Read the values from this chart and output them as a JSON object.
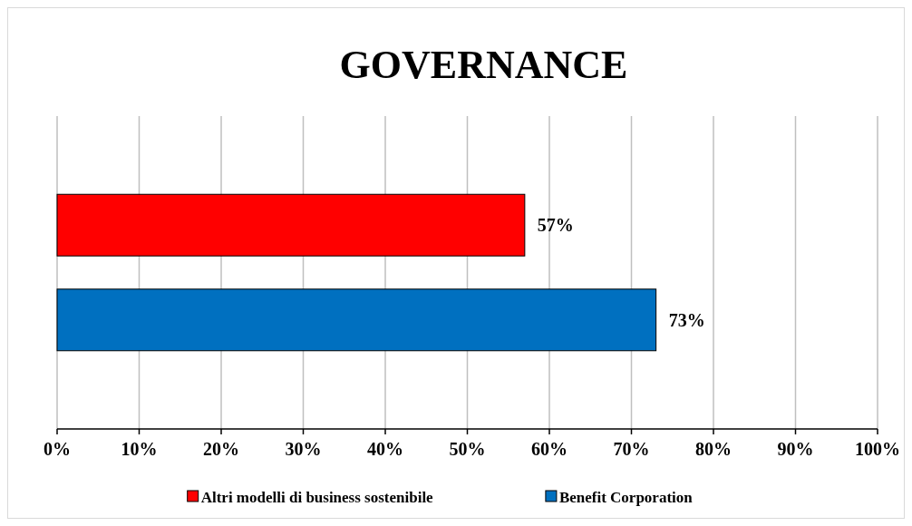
{
  "chart_data": {
    "type": "bar",
    "title": "GOVERNANCE",
    "orientation": "horizontal",
    "categories": [
      null
    ],
    "series": [
      {
        "name": "Altri modelli di business sostenibile",
        "color": "#ff0000",
        "values": [
          57
        ],
        "value_labels": [
          "57%"
        ]
      },
      {
        "name": "Benefit Corporation",
        "color": "#0070c0",
        "values": [
          73
        ],
        "value_labels": [
          "73%"
        ]
      }
    ],
    "xlim": [
      0,
      100
    ],
    "xticks": [
      {
        "value": 0,
        "label": "0%"
      },
      {
        "value": 10,
        "label": "10%"
      },
      {
        "value": 20,
        "label": "20%"
      },
      {
        "value": 30,
        "label": "30%"
      },
      {
        "value": 40,
        "label": "40%"
      },
      {
        "value": 50,
        "label": "50%"
      },
      {
        "value": 60,
        "label": "60%"
      },
      {
        "value": 70,
        "label": "70%"
      },
      {
        "value": 80,
        "label": "80%"
      },
      {
        "value": 90,
        "label": "90%"
      },
      {
        "value": 100,
        "label": "100%"
      }
    ],
    "grid": "x",
    "legend": "bottom"
  }
}
